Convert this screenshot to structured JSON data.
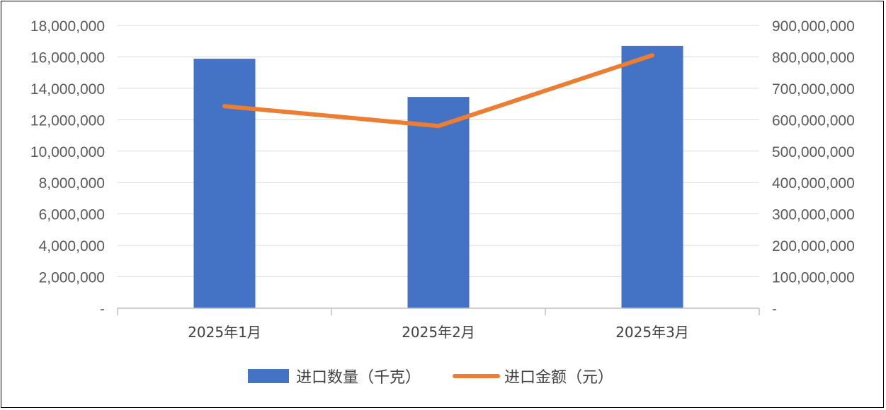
{
  "chart_data": {
    "type": "bar",
    "categories": [
      "2025年1月",
      "2025年2月",
      "2025年3月"
    ],
    "series": [
      {
        "name": "进口数量（千克）",
        "type": "bar",
        "axis": "left",
        "color": "#4472C4",
        "values": [
          15880000,
          13450000,
          16700000
        ]
      },
      {
        "name": "进口金额（元）",
        "type": "line",
        "axis": "right",
        "color": "#ED7D31",
        "values": [
          643000000,
          580000000,
          805000000
        ]
      }
    ],
    "y_left": {
      "range": [
        0,
        18000000
      ],
      "ticks": [
        "-",
        "2,000,000",
        "4,000,000",
        "6,000,000",
        "8,000,000",
        "10,000,000",
        "12,000,000",
        "14,000,000",
        "16,000,000",
        "18,000,000"
      ]
    },
    "y_right": {
      "range": [
        0,
        900000000
      ],
      "ticks": [
        "-",
        "100,000,000",
        "200,000,000",
        "300,000,000",
        "400,000,000",
        "500,000,000",
        "600,000,000",
        "700,000,000",
        "800,000,000",
        "900,000,000"
      ]
    },
    "grid": true,
    "legend": "bottom",
    "title": "",
    "xlabel": "",
    "ylabel": ""
  }
}
